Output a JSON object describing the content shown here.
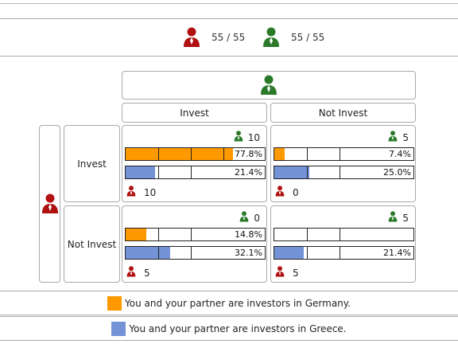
{
  "colors": {
    "red_player": "#b01010",
    "green_player": "#2a7a2a",
    "germany": "#ff9900",
    "greece": "#7393d6"
  },
  "score": {
    "red_player_icon": "red-person-icon",
    "red": "55 / 55",
    "green_player_icon": "green-person-icon",
    "green": "55 / 55"
  },
  "columns": {
    "invest": "Invest",
    "not_invest": "Not Invest"
  },
  "rows": {
    "invest": "Invest",
    "not_invest": "Not Invest"
  },
  "cells": {
    "ii": {
      "green_payoff": "10",
      "red_payoff": "10",
      "germany_pct": "77.8%",
      "germany_value": 0.778,
      "greece_pct": "21.4%",
      "greece_value": 0.214
    },
    "in": {
      "green_payoff": "5",
      "red_payoff": "0",
      "germany_pct": "7.4%",
      "germany_value": 0.074,
      "greece_pct": "25.0%",
      "greece_value": 0.25
    },
    "ni": {
      "green_payoff": "0",
      "red_payoff": "5",
      "germany_pct": "14.8%",
      "germany_value": 0.148,
      "greece_pct": "32.1%",
      "greece_value": 0.321
    },
    "nn": {
      "green_payoff": "5",
      "red_payoff": "5",
      "germany_pct": "",
      "germany_value": 0,
      "greece_pct": "21.4%",
      "greece_value": 0.214
    }
  },
  "legend": {
    "germany": "You and your partner are investors in Germany.",
    "greece": "You and your partner are investors in Greece."
  }
}
